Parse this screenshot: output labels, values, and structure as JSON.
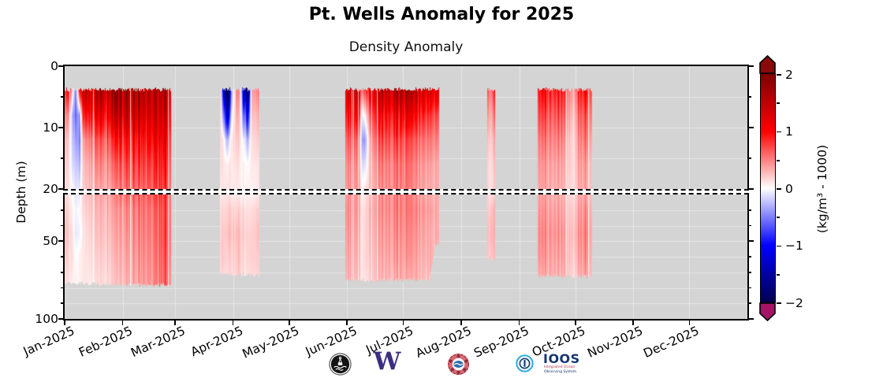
{
  "figure": {
    "title": "Pt. Wells Anomaly for 2025",
    "subtitle": "Density Anomaly",
    "ylabel": "Depth (m)"
  },
  "axes": {
    "x_ticklabels": [
      "Jan-2025",
      "Feb-2025",
      "Mar-2025",
      "Apr-2025",
      "May-2025",
      "Jun-2025",
      "Jul-2025",
      "Aug-2025",
      "Sep-2025",
      "Oct-2025",
      "Nov-2025",
      "Dec-2025"
    ],
    "month_day_offsets": [
      0,
      31,
      59,
      90,
      120,
      151,
      181,
      212,
      243,
      273,
      304,
      334
    ],
    "top_range": [
      0,
      20
    ],
    "bottom_range": [
      20,
      100
    ],
    "top_yticks": {
      "major": [
        0,
        10,
        20
      ],
      "labels": [
        "0",
        "10",
        "20"
      ],
      "minor": [
        5,
        15
      ]
    },
    "bottom_yticks": {
      "major": [
        50,
        100
      ],
      "labels": [
        "50",
        "100"
      ],
      "minor": [
        30,
        40,
        60,
        70,
        80,
        90
      ]
    },
    "top_grid_depths": [
      5,
      10,
      15
    ],
    "bottom_grid_depths": [
      30,
      40,
      50,
      60,
      70,
      80,
      90
    ],
    "background_color": "#d4d4d4",
    "grid_color": "#e6e6e6"
  },
  "colorbar": {
    "label": "(kg/m³ - 1000)",
    "tick_values": [
      2,
      1,
      0,
      -1,
      -2
    ],
    "tick_labels": [
      "2",
      "1",
      "0",
      "−1",
      "−2"
    ],
    "minor_tick_values": [
      1.5,
      0.5,
      -0.5,
      -1.5
    ],
    "vmin": -2,
    "vmax": 2,
    "cmap": "seismic",
    "over_color": "#8a0a0a",
    "under_color": "#a21565",
    "cmap_stops": [
      [
        "0%",
        "#00004d"
      ],
      [
        "25%",
        "#0000ff"
      ],
      [
        "50%",
        "#ffffff"
      ],
      [
        "75%",
        "#ff0000"
      ],
      [
        "100%",
        "#7f0000"
      ]
    ]
  },
  "logos": {
    "buoy_alt": "orca-buoy-logo",
    "uw_w": "W",
    "tribal_alt": "tribal-partner-logo",
    "ioos": "IOOS",
    "ioos_sub1": "Integrated Ocean",
    "ioos_sub2": "Observing System"
  },
  "chart_data": {
    "type": "heatmap",
    "title": "Pt. Wells Anomaly for 2025",
    "subtitle": "Density Anomaly",
    "xlabel": "",
    "ylabel": "Depth (m)",
    "value_units": "(kg/m³ - 1000)",
    "x_unit": "day_of_year_2025",
    "days_per_year": 365,
    "vmin": -2,
    "vmax": 2,
    "depth_nodes": [
      4,
      8,
      12,
      16,
      20,
      30,
      45,
      60,
      75
    ],
    "blocks": [
      {
        "name": "jan-feb-deployment",
        "day_start": 0,
        "day_end": 57,
        "top_depth": 3.8,
        "bottom_profile": [
          [
            0,
            77
          ],
          [
            40,
            78
          ],
          [
            57,
            78
          ]
        ],
        "keyframes": [
          [
            0,
            [
              0.6,
              0.35,
              0.2,
              0.15,
              0.1,
              0.15,
              0.2,
              0.15,
              0.1
            ]
          ],
          [
            2,
            [
              1.1,
              0.5,
              0.25,
              0.2,
              0.15,
              0.2,
              0.25,
              0.2,
              0.15
            ]
          ],
          [
            4,
            [
              0.2,
              -0.2,
              -0.15,
              -0.1,
              0,
              0.05,
              0.1,
              0.1,
              0.05
            ]
          ],
          [
            6,
            [
              -0.5,
              -0.55,
              -0.35,
              -0.2,
              -0.1,
              -0.05,
              -0.1,
              0,
              0.05
            ]
          ],
          [
            8,
            [
              0.9,
              -0.4,
              -0.5,
              -0.3,
              -0.1,
              0,
              -0.05,
              0.05,
              0.05
            ]
          ],
          [
            10,
            [
              1.5,
              0.9,
              0.4,
              0.25,
              0.2,
              0.15,
              0.1,
              0.1,
              0.1
            ]
          ],
          [
            14,
            [
              1.6,
              1.1,
              0.6,
              0.4,
              0.3,
              0.25,
              0.2,
              0.15,
              0.1
            ]
          ],
          [
            18,
            [
              1.7,
              1.2,
              0.7,
              0.5,
              0.35,
              0.3,
              0.25,
              0.2,
              0.15
            ]
          ],
          [
            22,
            [
              1.6,
              1.1,
              0.65,
              0.45,
              0.35,
              0.3,
              0.25,
              0.2,
              0.15
            ]
          ],
          [
            26,
            [
              1.7,
              1.3,
              0.8,
              0.55,
              0.4,
              0.35,
              0.3,
              0.25,
              0.2
            ]
          ],
          [
            30,
            [
              1.7,
              1.4,
              0.9,
              0.65,
              0.5,
              0.4,
              0.35,
              0.3,
              0.25
            ]
          ],
          [
            34,
            [
              1.6,
              1.3,
              0.9,
              0.7,
              0.55,
              0.45,
              0.4,
              0.35,
              0.3
            ]
          ],
          [
            38,
            [
              1.7,
              1.4,
              1.0,
              0.75,
              0.6,
              0.5,
              0.45,
              0.4,
              0.35
            ]
          ],
          [
            42,
            [
              1.6,
              1.3,
              0.95,
              0.75,
              0.6,
              0.55,
              0.5,
              0.45,
              0.4
            ]
          ],
          [
            46,
            [
              1.7,
              1.4,
              1.1,
              0.85,
              0.7,
              0.6,
              0.55,
              0.5,
              0.45
            ]
          ],
          [
            50,
            [
              1.7,
              1.5,
              1.2,
              0.95,
              0.8,
              0.7,
              0.65,
              0.6,
              0.55
            ]
          ],
          [
            53,
            [
              1.6,
              1.4,
              1.1,
              0.9,
              0.75,
              0.7,
              0.7,
              0.65,
              0.6
            ]
          ],
          [
            57,
            [
              1.4,
              1.1,
              0.85,
              0.7,
              0.6,
              0.6,
              0.6,
              0.55,
              0.5
            ]
          ]
        ]
      },
      {
        "name": "late-mar-apr-deployment",
        "day_start": 83,
        "day_end": 104,
        "top_depth": 3.8,
        "bottom_profile": [
          [
            83,
            71
          ],
          [
            104,
            72
          ]
        ],
        "keyframes": [
          [
            83,
            [
              0.5,
              0.3,
              0.2,
              0.15,
              0.1,
              0.15,
              0.2,
              0.2,
              0.15
            ]
          ],
          [
            85,
            [
              -1.2,
              -0.5,
              0.05,
              0.1,
              0.1,
              0.15,
              0.2,
              0.2,
              0.15
            ]
          ],
          [
            87,
            [
              -2.0,
              -1.3,
              -0.3,
              0.05,
              0.1,
              0.15,
              0.2,
              0.15,
              0.1
            ]
          ],
          [
            89,
            [
              -0.6,
              -0.2,
              0.1,
              0.1,
              0.1,
              0.2,
              0.25,
              0.2,
              0.15
            ]
          ],
          [
            92,
            [
              0.6,
              0.4,
              0.25,
              0.15,
              0.1,
              0.2,
              0.3,
              0.25,
              0.2
            ]
          ],
          [
            94,
            [
              0.2,
              0.1,
              0.1,
              0.05,
              0.05,
              0.15,
              0.2,
              0.2,
              0.15
            ]
          ],
          [
            96,
            [
              -1.6,
              -0.7,
              -0.1,
              0.05,
              0.05,
              0.15,
              0.2,
              0.15,
              0.1
            ]
          ],
          [
            98,
            [
              -1.9,
              -1.0,
              -0.3,
              0,
              0.05,
              0.1,
              0.15,
              0.15,
              0.1
            ]
          ],
          [
            100,
            [
              0.4,
              0.25,
              0.15,
              0.1,
              0.05,
              0.15,
              0.2,
              0.2,
              0.15
            ]
          ],
          [
            104,
            [
              0.5,
              0.3,
              0.2,
              0.1,
              0.1,
              0.2,
              0.25,
              0.2,
              0.15
            ]
          ]
        ]
      },
      {
        "name": "jun-jul-deployment",
        "day_start": 150,
        "day_end": 200,
        "top_depth": 3.8,
        "bottom_profile": [
          [
            150,
            75
          ],
          [
            195,
            75
          ],
          [
            197,
            62
          ],
          [
            198,
            53
          ],
          [
            200,
            52
          ]
        ],
        "keyframes": [
          [
            150,
            [
              1.3,
              0.9,
              0.6,
              0.45,
              0.4,
              0.45,
              0.4,
              0.35,
              0.3
            ]
          ],
          [
            153,
            [
              1.5,
              1.1,
              0.75,
              0.55,
              0.5,
              0.5,
              0.45,
              0.4,
              0.35
            ]
          ],
          [
            157,
            [
              1.4,
              1.0,
              0.6,
              0.45,
              0.4,
              0.4,
              0.35,
              0.3,
              0.25
            ]
          ],
          [
            159,
            [
              0.5,
              -0.1,
              -0.4,
              -0.15,
              0.05,
              0.1,
              0.1,
              0.1,
              0.1
            ]
          ],
          [
            161,
            [
              0.7,
              0.1,
              -0.3,
              -0.1,
              0.1,
              0.15,
              0.15,
              0.15,
              0.1
            ]
          ],
          [
            164,
            [
              1.4,
              0.9,
              0.55,
              0.4,
              0.35,
              0.4,
              0.35,
              0.3,
              0.25
            ]
          ],
          [
            168,
            [
              1.6,
              1.1,
              0.75,
              0.55,
              0.45,
              0.45,
              0.4,
              0.35,
              0.3
            ]
          ],
          [
            172,
            [
              1.5,
              1.0,
              0.7,
              0.5,
              0.45,
              0.45,
              0.4,
              0.35,
              0.3
            ]
          ],
          [
            176,
            [
              1.6,
              1.1,
              0.75,
              0.55,
              0.5,
              0.5,
              0.45,
              0.4,
              0.3
            ]
          ],
          [
            180,
            [
              1.5,
              1.0,
              0.65,
              0.5,
              0.45,
              0.45,
              0.4,
              0.35,
              0.3
            ]
          ],
          [
            184,
            [
              1.6,
              1.1,
              0.7,
              0.55,
              0.5,
              0.5,
              0.45,
              0.4,
              0.3
            ]
          ],
          [
            188,
            [
              1.4,
              0.95,
              0.6,
              0.45,
              0.4,
              0.45,
              0.4,
              0.35,
              0.3
            ]
          ],
          [
            192,
            [
              1.3,
              0.85,
              0.55,
              0.4,
              0.35,
              0.4,
              0.35,
              0.3,
              0.25
            ]
          ],
          [
            196,
            [
              1.2,
              0.75,
              0.5,
              0.35,
              0.3,
              0.35,
              0.3,
              0.3,
              0.25
            ]
          ],
          [
            200,
            [
              1.1,
              0.65,
              0.45,
              0.3,
              0.3,
              0.3,
              0.3,
              0.25,
              0.2
            ]
          ]
        ]
      },
      {
        "name": "mid-aug-short-deployment",
        "day_start": 226,
        "day_end": 230,
        "top_depth": 3.8,
        "bottom_profile": [
          [
            226,
            61
          ],
          [
            230,
            62
          ]
        ],
        "keyframes": [
          [
            226,
            [
              0.8,
              0.5,
              0.3,
              0.2,
              0.2,
              0.25,
              0.3,
              0.25,
              0.2
            ]
          ],
          [
            228,
            [
              0.4,
              0.25,
              0.15,
              0.1,
              0.1,
              0.2,
              0.25,
              0.2,
              0.15
            ]
          ],
          [
            230,
            [
              0.9,
              0.6,
              0.35,
              0.25,
              0.2,
              0.3,
              0.3,
              0.25,
              0.2
            ]
          ]
        ]
      },
      {
        "name": "sep-oct-deployment",
        "day_start": 253,
        "day_end": 282,
        "top_depth": 3.8,
        "bottom_profile": [
          [
            253,
            72
          ],
          [
            282,
            73
          ]
        ],
        "keyframes": [
          [
            253,
            [
              0.9,
              0.7,
              0.5,
              0.4,
              0.35,
              0.4,
              0.45,
              0.4,
              0.3
            ]
          ],
          [
            257,
            [
              1.1,
              0.8,
              0.6,
              0.45,
              0.4,
              0.45,
              0.5,
              0.45,
              0.35
            ]
          ],
          [
            261,
            [
              0.8,
              0.6,
              0.45,
              0.35,
              0.3,
              0.35,
              0.4,
              0.35,
              0.3
            ]
          ],
          [
            265,
            [
              1.0,
              0.75,
              0.55,
              0.4,
              0.35,
              0.4,
              0.45,
              0.4,
              0.3
            ]
          ],
          [
            269,
            [
              0.6,
              0.45,
              0.3,
              0.25,
              0.2,
              0.25,
              0.3,
              0.3,
              0.25
            ]
          ],
          [
            272,
            [
              0.25,
              0.15,
              0.1,
              0.1,
              0.1,
              0.15,
              0.2,
              0.15,
              0.1
            ]
          ],
          [
            275,
            [
              0.9,
              0.65,
              0.5,
              0.4,
              0.35,
              0.4,
              0.45,
              0.4,
              0.3
            ]
          ],
          [
            279,
            [
              1.0,
              0.7,
              0.55,
              0.4,
              0.35,
              0.45,
              0.5,
              0.45,
              0.35
            ]
          ],
          [
            282,
            [
              0.8,
              0.6,
              0.4,
              0.3,
              0.3,
              0.35,
              0.4,
              0.35,
              0.3
            ]
          ]
        ]
      }
    ]
  }
}
